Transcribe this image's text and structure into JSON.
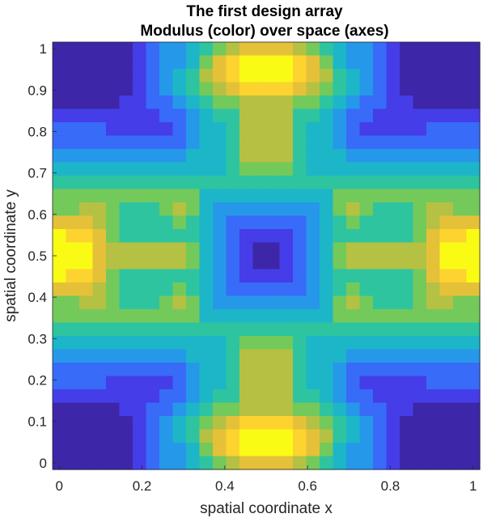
{
  "chart_data": {
    "type": "heatmap",
    "title": "The first design array",
    "subtitle": "Modulus (color) over space (axes)",
    "xlabel": "spatial coordinate x",
    "ylabel": "spatial coordinate y",
    "xlim": [
      -0.0161,
      1.0161
    ],
    "ylim": [
      -0.0161,
      1.0161
    ],
    "xticks": [
      0,
      0.2,
      0.4,
      0.6,
      0.8,
      1
    ],
    "yticks": [
      0,
      0.1,
      0.2,
      0.3,
      0.4,
      0.5,
      0.6,
      0.7,
      0.8,
      0.9,
      1
    ],
    "xtick_labels": [
      "0",
      "0.2",
      "0.4",
      "0.6",
      "0.8",
      "1"
    ],
    "ytick_labels": [
      "0",
      "0.1",
      "0.2",
      "0.3",
      "0.4",
      "0.5",
      "0.6",
      "0.7",
      "0.8",
      "0.9",
      "1"
    ],
    "grid": false,
    "colormap": "parula",
    "colormap_stops": [
      "#3e26a8",
      "#4743f8",
      "#2e86f8",
      "#19b2d2",
      "#2ec4a0",
      "#86ca4a",
      "#d5bb3c",
      "#fdc935",
      "#f9fb15"
    ],
    "grid_size": 32,
    "cell_width": 0.0323,
    "value_range": [
      0,
      1
    ],
    "values": [
      [
        0.0,
        0.0,
        0.0,
        0.0,
        0.0,
        0.0,
        0.1,
        0.2,
        0.3,
        0.3,
        0.4,
        0.5,
        0.6,
        0.7,
        0.8,
        0.8,
        0.8,
        0.8,
        0.7,
        0.6,
        0.5,
        0.4,
        0.3,
        0.3,
        0.2,
        0.1,
        0.0,
        0.0,
        0.0,
        0.0,
        0.0,
        0.0
      ],
      [
        0.0,
        0.0,
        0.0,
        0.0,
        0.0,
        0.0,
        0.1,
        0.2,
        0.3,
        0.3,
        0.4,
        0.6,
        0.8,
        0.9,
        1.0,
        1.0,
        1.0,
        1.0,
        0.9,
        0.8,
        0.6,
        0.4,
        0.3,
        0.3,
        0.2,
        0.1,
        0.0,
        0.0,
        0.0,
        0.0,
        0.0,
        0.0
      ],
      [
        0.0,
        0.0,
        0.0,
        0.0,
        0.0,
        0.0,
        0.1,
        0.2,
        0.3,
        0.4,
        0.5,
        0.7,
        0.8,
        0.9,
        1.0,
        1.0,
        1.0,
        1.0,
        0.9,
        0.8,
        0.7,
        0.5,
        0.4,
        0.3,
        0.2,
        0.1,
        0.0,
        0.0,
        0.0,
        0.0,
        0.0,
        0.0
      ],
      [
        0.0,
        0.0,
        0.0,
        0.0,
        0.0,
        0.0,
        0.1,
        0.2,
        0.3,
        0.4,
        0.5,
        0.6,
        0.7,
        0.8,
        0.9,
        0.9,
        0.9,
        0.9,
        0.8,
        0.7,
        0.6,
        0.5,
        0.4,
        0.3,
        0.2,
        0.1,
        0.0,
        0.0,
        0.0,
        0.0,
        0.0,
        0.0
      ],
      [
        0.0,
        0.0,
        0.0,
        0.0,
        0.0,
        0.1,
        0.1,
        0.2,
        0.2,
        0.3,
        0.4,
        0.5,
        0.6,
        0.6,
        0.7,
        0.7,
        0.7,
        0.7,
        0.6,
        0.6,
        0.5,
        0.4,
        0.3,
        0.2,
        0.2,
        0.1,
        0.1,
        0.0,
        0.0,
        0.0,
        0.0,
        0.0
      ],
      [
        0.1,
        0.1,
        0.1,
        0.1,
        0.1,
        0.1,
        0.1,
        0.1,
        0.2,
        0.2,
        0.3,
        0.4,
        0.5,
        0.5,
        0.7,
        0.7,
        0.7,
        0.7,
        0.5,
        0.5,
        0.4,
        0.3,
        0.2,
        0.2,
        0.1,
        0.1,
        0.1,
        0.1,
        0.1,
        0.1,
        0.1,
        0.1
      ],
      [
        0.2,
        0.2,
        0.2,
        0.2,
        0.1,
        0.1,
        0.1,
        0.1,
        0.1,
        0.2,
        0.3,
        0.4,
        0.4,
        0.5,
        0.7,
        0.7,
        0.7,
        0.7,
        0.5,
        0.4,
        0.4,
        0.3,
        0.2,
        0.1,
        0.1,
        0.1,
        0.1,
        0.1,
        0.2,
        0.2,
        0.2,
        0.2
      ],
      [
        0.2,
        0.2,
        0.2,
        0.2,
        0.2,
        0.2,
        0.2,
        0.2,
        0.2,
        0.2,
        0.3,
        0.4,
        0.4,
        0.5,
        0.7,
        0.7,
        0.7,
        0.7,
        0.5,
        0.4,
        0.4,
        0.3,
        0.2,
        0.2,
        0.2,
        0.2,
        0.2,
        0.2,
        0.2,
        0.2,
        0.2,
        0.2
      ],
      [
        0.3,
        0.3,
        0.3,
        0.3,
        0.3,
        0.3,
        0.3,
        0.3,
        0.3,
        0.3,
        0.4,
        0.4,
        0.4,
        0.5,
        0.7,
        0.7,
        0.7,
        0.7,
        0.5,
        0.4,
        0.4,
        0.4,
        0.3,
        0.3,
        0.3,
        0.3,
        0.3,
        0.3,
        0.3,
        0.3,
        0.3,
        0.3
      ],
      [
        0.4,
        0.4,
        0.4,
        0.4,
        0.4,
        0.4,
        0.4,
        0.4,
        0.4,
        0.4,
        0.4,
        0.4,
        0.4,
        0.5,
        0.6,
        0.6,
        0.6,
        0.6,
        0.5,
        0.4,
        0.4,
        0.4,
        0.4,
        0.4,
        0.4,
        0.4,
        0.4,
        0.4,
        0.4,
        0.4,
        0.4,
        0.4
      ],
      [
        0.5,
        0.5,
        0.5,
        0.5,
        0.5,
        0.5,
        0.5,
        0.5,
        0.5,
        0.5,
        0.5,
        0.5,
        0.5,
        0.5,
        0.5,
        0.5,
        0.5,
        0.5,
        0.5,
        0.5,
        0.5,
        0.5,
        0.5,
        0.5,
        0.5,
        0.5,
        0.5,
        0.5,
        0.5,
        0.5,
        0.5,
        0.5
      ],
      [
        0.6,
        0.6,
        0.6,
        0.6,
        0.6,
        0.6,
        0.6,
        0.6,
        0.6,
        0.6,
        0.6,
        0.4,
        0.4,
        0.4,
        0.4,
        0.4,
        0.4,
        0.4,
        0.4,
        0.4,
        0.4,
        0.6,
        0.6,
        0.6,
        0.6,
        0.6,
        0.6,
        0.6,
        0.6,
        0.6,
        0.6,
        0.6
      ],
      [
        0.6,
        0.6,
        0.7,
        0.7,
        0.6,
        0.5,
        0.5,
        0.5,
        0.6,
        0.7,
        0.6,
        0.4,
        0.3,
        0.3,
        0.3,
        0.3,
        0.3,
        0.3,
        0.3,
        0.3,
        0.4,
        0.6,
        0.7,
        0.6,
        0.5,
        0.5,
        0.5,
        0.6,
        0.7,
        0.7,
        0.6,
        0.6
      ],
      [
        0.8,
        0.8,
        0.8,
        0.7,
        0.6,
        0.5,
        0.5,
        0.5,
        0.5,
        0.6,
        0.5,
        0.4,
        0.3,
        0.2,
        0.2,
        0.2,
        0.2,
        0.2,
        0.2,
        0.3,
        0.4,
        0.5,
        0.6,
        0.5,
        0.5,
        0.5,
        0.5,
        0.6,
        0.7,
        0.8,
        0.8,
        0.8
      ],
      [
        1.0,
        0.9,
        0.9,
        0.8,
        0.6,
        0.5,
        0.5,
        0.5,
        0.5,
        0.5,
        0.5,
        0.4,
        0.3,
        0.2,
        0.1,
        0.1,
        0.1,
        0.1,
        0.2,
        0.3,
        0.4,
        0.5,
        0.5,
        0.5,
        0.5,
        0.5,
        0.5,
        0.6,
        0.8,
        0.9,
        0.9,
        1.0
      ],
      [
        1.0,
        1.0,
        1.0,
        0.8,
        0.7,
        0.7,
        0.7,
        0.7,
        0.7,
        0.7,
        0.6,
        0.4,
        0.3,
        0.2,
        0.1,
        0.0,
        0.0,
        0.1,
        0.2,
        0.3,
        0.4,
        0.6,
        0.7,
        0.7,
        0.7,
        0.7,
        0.7,
        0.7,
        0.8,
        1.0,
        1.0,
        1.0
      ],
      [
        1.0,
        1.0,
        1.0,
        0.8,
        0.7,
        0.7,
        0.7,
        0.7,
        0.7,
        0.7,
        0.6,
        0.4,
        0.3,
        0.2,
        0.1,
        0.0,
        0.0,
        0.1,
        0.2,
        0.3,
        0.4,
        0.6,
        0.7,
        0.7,
        0.7,
        0.7,
        0.7,
        0.7,
        0.8,
        1.0,
        1.0,
        1.0
      ],
      [
        1.0,
        0.9,
        0.9,
        0.8,
        0.6,
        0.5,
        0.5,
        0.5,
        0.5,
        0.5,
        0.5,
        0.4,
        0.3,
        0.2,
        0.1,
        0.1,
        0.1,
        0.1,
        0.2,
        0.3,
        0.4,
        0.5,
        0.5,
        0.5,
        0.5,
        0.5,
        0.5,
        0.6,
        0.8,
        0.9,
        0.9,
        1.0
      ],
      [
        0.8,
        0.8,
        0.8,
        0.7,
        0.6,
        0.5,
        0.5,
        0.5,
        0.5,
        0.6,
        0.5,
        0.4,
        0.3,
        0.2,
        0.2,
        0.2,
        0.2,
        0.2,
        0.2,
        0.3,
        0.4,
        0.5,
        0.6,
        0.5,
        0.5,
        0.5,
        0.5,
        0.6,
        0.7,
        0.8,
        0.8,
        0.8
      ],
      [
        0.6,
        0.6,
        0.7,
        0.7,
        0.6,
        0.5,
        0.5,
        0.5,
        0.6,
        0.7,
        0.6,
        0.4,
        0.3,
        0.3,
        0.3,
        0.3,
        0.3,
        0.3,
        0.3,
        0.3,
        0.4,
        0.6,
        0.7,
        0.6,
        0.5,
        0.5,
        0.5,
        0.6,
        0.7,
        0.7,
        0.6,
        0.6
      ],
      [
        0.6,
        0.6,
        0.6,
        0.6,
        0.6,
        0.6,
        0.6,
        0.6,
        0.6,
        0.6,
        0.6,
        0.4,
        0.4,
        0.4,
        0.4,
        0.4,
        0.4,
        0.4,
        0.4,
        0.4,
        0.4,
        0.6,
        0.6,
        0.6,
        0.6,
        0.6,
        0.6,
        0.6,
        0.6,
        0.6,
        0.6,
        0.6
      ],
      [
        0.5,
        0.5,
        0.5,
        0.5,
        0.5,
        0.5,
        0.5,
        0.5,
        0.5,
        0.5,
        0.5,
        0.5,
        0.5,
        0.5,
        0.5,
        0.5,
        0.5,
        0.5,
        0.5,
        0.5,
        0.5,
        0.5,
        0.5,
        0.5,
        0.5,
        0.5,
        0.5,
        0.5,
        0.5,
        0.5,
        0.5,
        0.5
      ],
      [
        0.4,
        0.4,
        0.4,
        0.4,
        0.4,
        0.4,
        0.4,
        0.4,
        0.4,
        0.4,
        0.4,
        0.4,
        0.4,
        0.5,
        0.6,
        0.6,
        0.6,
        0.6,
        0.5,
        0.4,
        0.4,
        0.4,
        0.4,
        0.4,
        0.4,
        0.4,
        0.4,
        0.4,
        0.4,
        0.4,
        0.4,
        0.4
      ],
      [
        0.3,
        0.3,
        0.3,
        0.3,
        0.3,
        0.3,
        0.3,
        0.3,
        0.3,
        0.3,
        0.4,
        0.4,
        0.4,
        0.5,
        0.7,
        0.7,
        0.7,
        0.7,
        0.5,
        0.4,
        0.4,
        0.4,
        0.3,
        0.3,
        0.3,
        0.3,
        0.3,
        0.3,
        0.3,
        0.3,
        0.3,
        0.3
      ],
      [
        0.2,
        0.2,
        0.2,
        0.2,
        0.2,
        0.2,
        0.2,
        0.2,
        0.2,
        0.2,
        0.3,
        0.4,
        0.4,
        0.5,
        0.7,
        0.7,
        0.7,
        0.7,
        0.5,
        0.4,
        0.4,
        0.3,
        0.2,
        0.2,
        0.2,
        0.2,
        0.2,
        0.2,
        0.2,
        0.2,
        0.2,
        0.2
      ],
      [
        0.2,
        0.2,
        0.2,
        0.2,
        0.1,
        0.1,
        0.1,
        0.1,
        0.1,
        0.2,
        0.3,
        0.4,
        0.4,
        0.5,
        0.7,
        0.7,
        0.7,
        0.7,
        0.5,
        0.4,
        0.4,
        0.3,
        0.2,
        0.1,
        0.1,
        0.1,
        0.1,
        0.1,
        0.2,
        0.2,
        0.2,
        0.2
      ],
      [
        0.1,
        0.1,
        0.1,
        0.1,
        0.1,
        0.1,
        0.1,
        0.1,
        0.2,
        0.2,
        0.3,
        0.4,
        0.5,
        0.5,
        0.7,
        0.7,
        0.7,
        0.7,
        0.5,
        0.5,
        0.4,
        0.3,
        0.2,
        0.2,
        0.1,
        0.1,
        0.1,
        0.1,
        0.1,
        0.1,
        0.1,
        0.1
      ],
      [
        0.0,
        0.0,
        0.0,
        0.0,
        0.0,
        0.1,
        0.1,
        0.2,
        0.2,
        0.3,
        0.4,
        0.5,
        0.6,
        0.6,
        0.7,
        0.7,
        0.7,
        0.7,
        0.6,
        0.6,
        0.5,
        0.4,
        0.3,
        0.2,
        0.2,
        0.1,
        0.1,
        0.0,
        0.0,
        0.0,
        0.0,
        0.0
      ],
      [
        0.0,
        0.0,
        0.0,
        0.0,
        0.0,
        0.0,
        0.1,
        0.2,
        0.3,
        0.4,
        0.5,
        0.6,
        0.7,
        0.8,
        0.9,
        0.9,
        0.9,
        0.9,
        0.8,
        0.7,
        0.6,
        0.5,
        0.4,
        0.3,
        0.2,
        0.1,
        0.0,
        0.0,
        0.0,
        0.0,
        0.0,
        0.0
      ],
      [
        0.0,
        0.0,
        0.0,
        0.0,
        0.0,
        0.0,
        0.1,
        0.2,
        0.3,
        0.4,
        0.5,
        0.7,
        0.8,
        0.9,
        1.0,
        1.0,
        1.0,
        1.0,
        0.9,
        0.8,
        0.7,
        0.5,
        0.4,
        0.3,
        0.2,
        0.1,
        0.0,
        0.0,
        0.0,
        0.0,
        0.0,
        0.0
      ],
      [
        0.0,
        0.0,
        0.0,
        0.0,
        0.0,
        0.0,
        0.1,
        0.2,
        0.3,
        0.3,
        0.4,
        0.6,
        0.8,
        0.9,
        1.0,
        1.0,
        1.0,
        1.0,
        0.9,
        0.8,
        0.6,
        0.4,
        0.3,
        0.3,
        0.2,
        0.1,
        0.0,
        0.0,
        0.0,
        0.0,
        0.0,
        0.0
      ],
      [
        0.0,
        0.0,
        0.0,
        0.0,
        0.0,
        0.0,
        0.1,
        0.2,
        0.3,
        0.3,
        0.4,
        0.5,
        0.6,
        0.7,
        0.8,
        0.8,
        0.8,
        0.8,
        0.7,
        0.6,
        0.5,
        0.4,
        0.3,
        0.3,
        0.2,
        0.1,
        0.0,
        0.0,
        0.0,
        0.0,
        0.0,
        0.0
      ]
    ]
  }
}
